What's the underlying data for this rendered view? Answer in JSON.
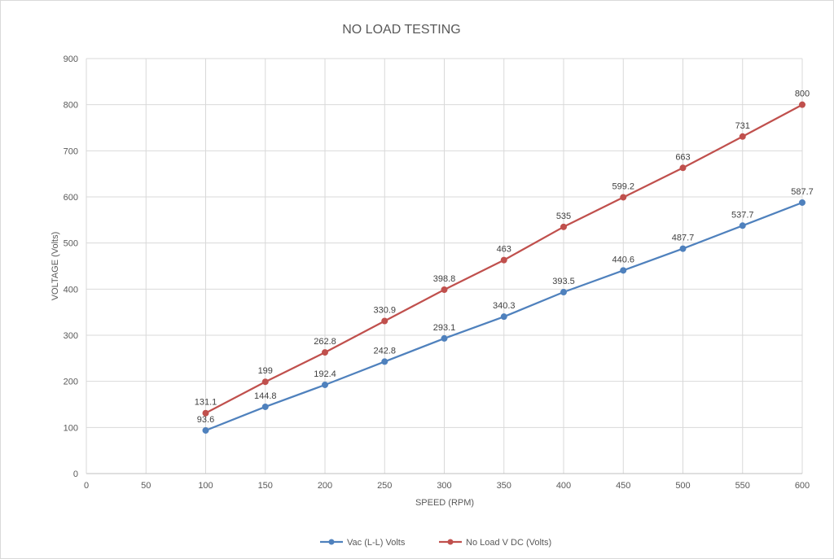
{
  "chart_data": {
    "type": "line",
    "title": "NO LOAD TESTING",
    "xlabel": "SPEED (RPM)",
    "ylabel": "VOLTAGE (Volts)",
    "xlim": [
      0,
      600
    ],
    "ylim": [
      0,
      900
    ],
    "x_ticks": [
      0,
      50,
      100,
      150,
      200,
      250,
      300,
      350,
      400,
      450,
      500,
      550,
      600
    ],
    "y_ticks": [
      0,
      100,
      200,
      300,
      400,
      500,
      600,
      700,
      800,
      900
    ],
    "grid": true,
    "legend_position": "bottom",
    "x": [
      100,
      150,
      200,
      250,
      300,
      350,
      400,
      450,
      500,
      550,
      600
    ],
    "series": [
      {
        "name": "Vac (L-L) Volts",
        "color": "#4f81bd",
        "values": [
          93.6,
          144.8,
          192.4,
          242.8,
          293.1,
          340.3,
          393.5,
          440.6,
          487.7,
          537.7,
          587.7
        ],
        "labels": [
          "93.6",
          "144.8",
          "192.4",
          "242.8",
          "293.1",
          "340.3",
          "393.5",
          "440.6",
          "487.7",
          "537.7",
          "587.7"
        ]
      },
      {
        "name": "No Load V DC (Volts)",
        "color": "#c0504d",
        "values": [
          131.1,
          199,
          262.8,
          330.9,
          398.8,
          463,
          535,
          599.2,
          663,
          731,
          800
        ],
        "labels": [
          "131.1",
          "199",
          "262.8",
          "330.9",
          "398.8",
          "463",
          "535",
          "599.2",
          "663",
          "731",
          "800"
        ]
      }
    ]
  }
}
